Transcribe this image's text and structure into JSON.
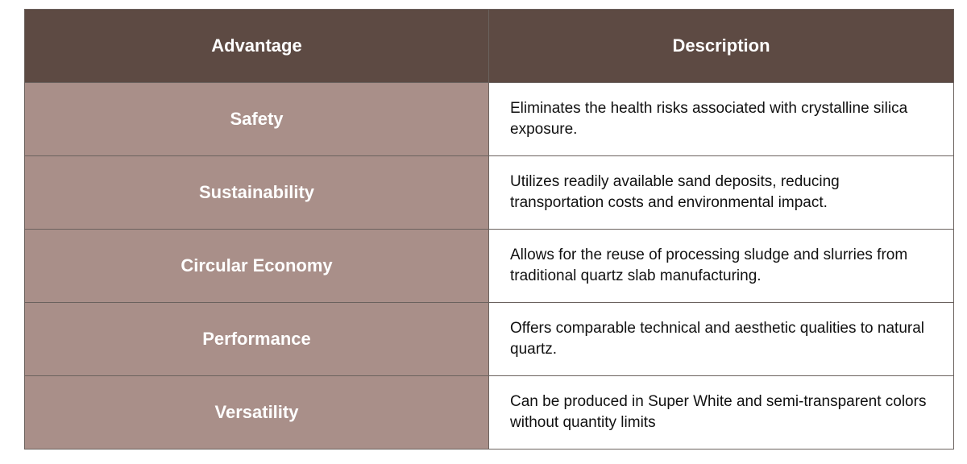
{
  "table": {
    "header": [
      "Advantage",
      "Description"
    ],
    "rows": [
      [
        "Safety",
        "Eliminates the health risks associated with crystalline silica exposure."
      ],
      [
        "Sustainability",
        "Utilizes readily available sand deposits, reducing transportation costs and environmental impact."
      ],
      [
        "Circular Economy",
        "Allows for the reuse of processing sludge and slurries from traditional quartz slab manufacturing."
      ],
      [
        "Performance",
        "Offers comparable technical and aesthetic qualities to natural quartz."
      ],
      [
        "Versatility",
        "Can be produced in Super White and semi-transparent colors without quantity limits"
      ]
    ]
  }
}
